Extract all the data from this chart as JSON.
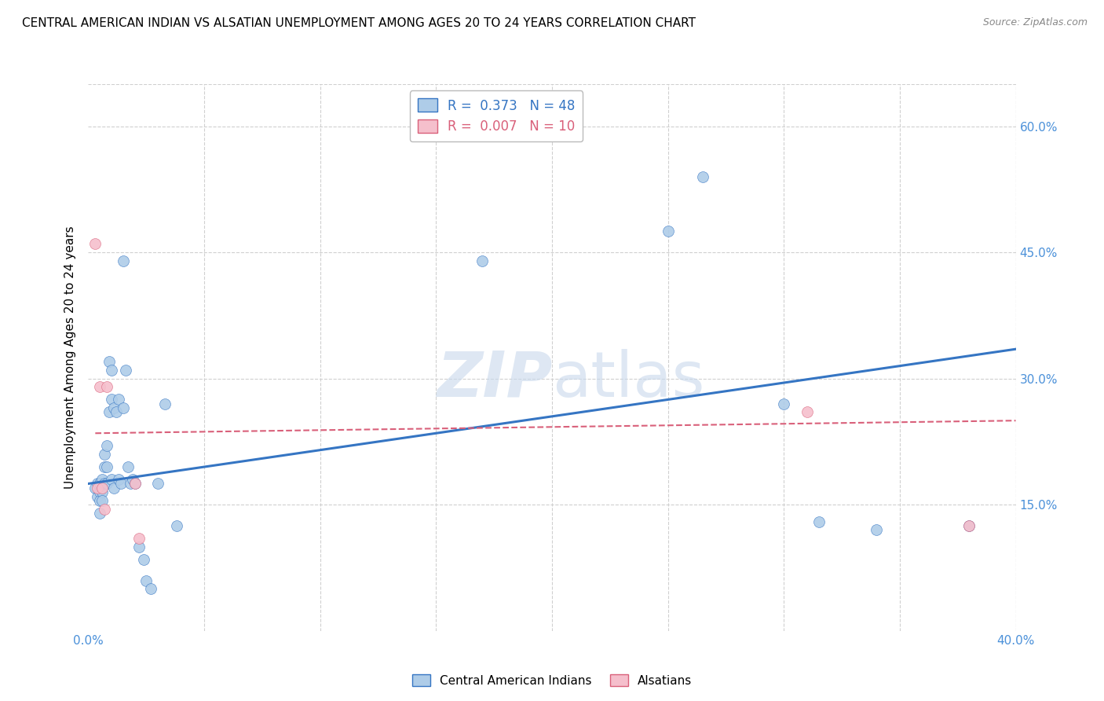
{
  "title": "CENTRAL AMERICAN INDIAN VS ALSATIAN UNEMPLOYMENT AMONG AGES 20 TO 24 YEARS CORRELATION CHART",
  "source": "Source: ZipAtlas.com",
  "ylabel": "Unemployment Among Ages 20 to 24 years",
  "xlim": [
    0.0,
    0.4
  ],
  "ylim": [
    0.0,
    0.65
  ],
  "xticks": [
    0.0,
    0.05,
    0.1,
    0.15,
    0.2,
    0.25,
    0.3,
    0.35,
    0.4
  ],
  "yticks": [
    0.0,
    0.15,
    0.3,
    0.45,
    0.6
  ],
  "watermark_zip": "ZIP",
  "watermark_atlas": "atlas",
  "legend_blue_r": "0.373",
  "legend_blue_n": "48",
  "legend_pink_r": "0.007",
  "legend_pink_n": "10",
  "blue_color": "#aecce8",
  "blue_line_color": "#3575c3",
  "pink_color": "#f5bfcc",
  "pink_line_color": "#d9607a",
  "blue_scatter_x": [
    0.003,
    0.004,
    0.004,
    0.005,
    0.005,
    0.005,
    0.005,
    0.006,
    0.006,
    0.006,
    0.007,
    0.007,
    0.007,
    0.008,
    0.008,
    0.008,
    0.009,
    0.009,
    0.01,
    0.01,
    0.01,
    0.011,
    0.011,
    0.012,
    0.013,
    0.013,
    0.014,
    0.015,
    0.015,
    0.016,
    0.017,
    0.018,
    0.019,
    0.02,
    0.022,
    0.024,
    0.025,
    0.027,
    0.03,
    0.033,
    0.038,
    0.17,
    0.25,
    0.265,
    0.3,
    0.315,
    0.34,
    0.38
  ],
  "blue_scatter_y": [
    0.17,
    0.175,
    0.16,
    0.175,
    0.165,
    0.155,
    0.14,
    0.18,
    0.165,
    0.155,
    0.21,
    0.195,
    0.175,
    0.22,
    0.195,
    0.175,
    0.32,
    0.26,
    0.31,
    0.275,
    0.18,
    0.265,
    0.17,
    0.26,
    0.275,
    0.18,
    0.175,
    0.44,
    0.265,
    0.31,
    0.195,
    0.175,
    0.18,
    0.175,
    0.1,
    0.085,
    0.06,
    0.05,
    0.175,
    0.27,
    0.125,
    0.44,
    0.475,
    0.54,
    0.27,
    0.13,
    0.12,
    0.125
  ],
  "pink_scatter_x": [
    0.003,
    0.004,
    0.005,
    0.006,
    0.007,
    0.008,
    0.02,
    0.022,
    0.31,
    0.38
  ],
  "pink_scatter_y": [
    0.46,
    0.17,
    0.29,
    0.17,
    0.145,
    0.29,
    0.175,
    0.11,
    0.26,
    0.125
  ],
  "blue_line_x0": 0.0,
  "blue_line_x1": 0.4,
  "blue_line_y0": 0.175,
  "blue_line_y1": 0.335,
  "pink_line_x0": 0.003,
  "pink_line_x1": 0.4,
  "pink_line_y0": 0.235,
  "pink_line_y1": 0.25,
  "background_color": "#ffffff",
  "grid_color": "#d0d0d0",
  "title_fontsize": 11,
  "axis_label_fontsize": 11,
  "tick_fontsize": 11,
  "scatter_size": 100
}
